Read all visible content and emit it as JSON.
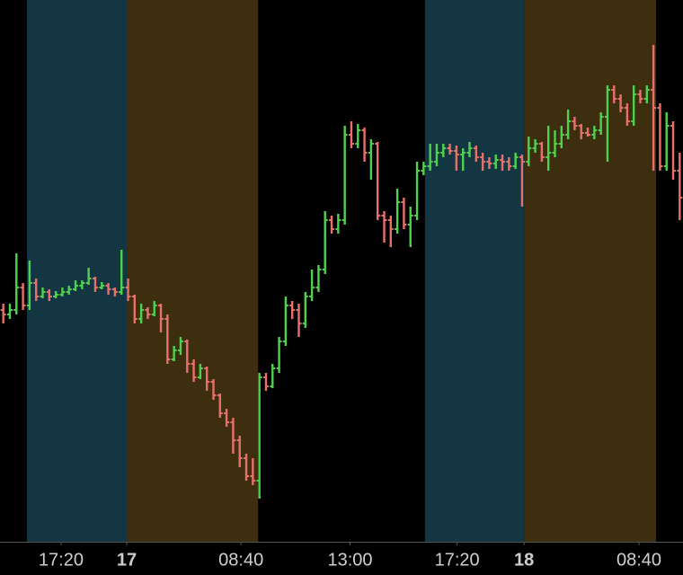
{
  "chart_data": {
    "type": "ohlc",
    "xlim": [
      -0.5,
      103.5
    ],
    "ylim": [
      -3,
      600
    ],
    "xticks": [
      {
        "value": 8.8,
        "label": "17:20"
      },
      {
        "value": 18.8,
        "label": "17",
        "bold": true
      },
      {
        "value": 36.2,
        "label": "08:40"
      },
      {
        "value": 52.8,
        "label": "13:00"
      },
      {
        "value": 69.1,
        "label": "17:20"
      },
      {
        "value": 79.3,
        "label": "18",
        "bold": true
      },
      {
        "value": 96.8,
        "label": "08:40"
      }
    ],
    "bands": [
      {
        "from": 3.6,
        "to": 18.8,
        "color": "#143642"
      },
      {
        "from": 18.8,
        "to": 38.8,
        "color": "#3d2e10"
      },
      {
        "from": 64.2,
        "to": 79.3,
        "color": "#143642"
      },
      {
        "from": 79.3,
        "to": 99.4,
        "color": "#3d2e10"
      }
    ],
    "up_color": "#4fd14f",
    "down_color": "#e8706a",
    "background": "#000000",
    "ohlc": [
      [
        255,
        262,
        240,
        250
      ],
      [
        250,
        262,
        245,
        255
      ],
      [
        255,
        318,
        250,
        280
      ],
      [
        280,
        285,
        255,
        260
      ],
      [
        260,
        310,
        255,
        285
      ],
      [
        285,
        290,
        265,
        270
      ],
      [
        270,
        280,
        268,
        275
      ],
      [
        275,
        278,
        265,
        270
      ],
      [
        270,
        276,
        268,
        272
      ],
      [
        272,
        280,
        270,
        275
      ],
      [
        275,
        282,
        272,
        278
      ],
      [
        278,
        288,
        276,
        282
      ],
      [
        282,
        288,
        278,
        285
      ],
      [
        285,
        302,
        283,
        290
      ],
      [
        290,
        292,
        275,
        280
      ],
      [
        280,
        286,
        278,
        282
      ],
      [
        282,
        285,
        272,
        278
      ],
      [
        278,
        280,
        270,
        275
      ],
      [
        275,
        322,
        272,
        280
      ],
      [
        280,
        290,
        265,
        270
      ],
      [
        270,
        272,
        240,
        245
      ],
      [
        245,
        262,
        240,
        255
      ],
      [
        255,
        258,
        245,
        250
      ],
      [
        250,
        265,
        248,
        260
      ],
      [
        260,
        262,
        230,
        245
      ],
      [
        245,
        250,
        195,
        200
      ],
      [
        200,
        215,
        198,
        210
      ],
      [
        210,
        225,
        205,
        220
      ],
      [
        220,
        222,
        185,
        195
      ],
      [
        195,
        200,
        175,
        180
      ],
      [
        180,
        195,
        178,
        190
      ],
      [
        190,
        192,
        165,
        175
      ],
      [
        175,
        178,
        155,
        160
      ],
      [
        160,
        162,
        135,
        140
      ],
      [
        140,
        145,
        125,
        130
      ],
      [
        130,
        135,
        95,
        110
      ],
      [
        110,
        115,
        80,
        90
      ],
      [
        90,
        95,
        65,
        70
      ],
      [
        70,
        90,
        60,
        65
      ],
      [
        65,
        185,
        45,
        180
      ],
      [
        180,
        185,
        165,
        170
      ],
      [
        170,
        195,
        168,
        190
      ],
      [
        190,
        225,
        185,
        220
      ],
      [
        220,
        270,
        215,
        260
      ],
      [
        260,
        265,
        245,
        255
      ],
      [
        255,
        262,
        225,
        240
      ],
      [
        240,
        275,
        235,
        270
      ],
      [
        270,
        300,
        265,
        280
      ],
      [
        280,
        305,
        275,
        300
      ],
      [
        300,
        365,
        295,
        355
      ],
      [
        355,
        360,
        340,
        345
      ],
      [
        345,
        362,
        340,
        355
      ],
      [
        355,
        460,
        350,
        450
      ],
      [
        450,
        465,
        435,
        440
      ],
      [
        440,
        462,
        435,
        455
      ],
      [
        455,
        458,
        420,
        430
      ],
      [
        430,
        445,
        400,
        440
      ],
      [
        440,
        442,
        355,
        360
      ],
      [
        360,
        365,
        330,
        355
      ],
      [
        355,
        360,
        325,
        345
      ],
      [
        345,
        390,
        340,
        375
      ],
      [
        375,
        380,
        345,
        350
      ],
      [
        350,
        370,
        325,
        360
      ],
      [
        360,
        420,
        355,
        410
      ],
      [
        410,
        420,
        405,
        415
      ],
      [
        415,
        440,
        410,
        420
      ],
      [
        420,
        440,
        415,
        430
      ],
      [
        430,
        440,
        425,
        435
      ],
      [
        435,
        440,
        428,
        432
      ],
      [
        432,
        438,
        410,
        428
      ],
      [
        428,
        435,
        410,
        430
      ],
      [
        430,
        442,
        425,
        435
      ],
      [
        435,
        438,
        420,
        425
      ],
      [
        425,
        430,
        410,
        420
      ],
      [
        420,
        425,
        412,
        418
      ],
      [
        418,
        428,
        412,
        422
      ],
      [
        422,
        428,
        410,
        420
      ],
      [
        420,
        425,
        410,
        415
      ],
      [
        415,
        430,
        412,
        425
      ],
      [
        425,
        428,
        370,
        420
      ],
      [
        420,
        448,
        415,
        435
      ],
      [
        435,
        445,
        430,
        440
      ],
      [
        440,
        442,
        420,
        425
      ],
      [
        425,
        460,
        410,
        430
      ],
      [
        430,
        455,
        425,
        440
      ],
      [
        440,
        460,
        435,
        450
      ],
      [
        450,
        478,
        445,
        465
      ],
      [
        465,
        470,
        455,
        460
      ],
      [
        460,
        462,
        445,
        452
      ],
      [
        452,
        458,
        448,
        450
      ],
      [
        450,
        460,
        445,
        455
      ],
      [
        455,
        475,
        450,
        470
      ],
      [
        470,
        505,
        420,
        500
      ],
      [
        500,
        505,
        485,
        490
      ],
      [
        490,
        495,
        475,
        480
      ],
      [
        480,
        485,
        460,
        465
      ],
      [
        465,
        505,
        460,
        495
      ],
      [
        495,
        500,
        485,
        490
      ],
      [
        490,
        505,
        485,
        500
      ],
      [
        500,
        550,
        410,
        480
      ],
      [
        480,
        485,
        410,
        415
      ],
      [
        415,
        475,
        410,
        460
      ],
      [
        460,
        465,
        400,
        410
      ],
      [
        410,
        430,
        355,
        380
      ]
    ]
  }
}
